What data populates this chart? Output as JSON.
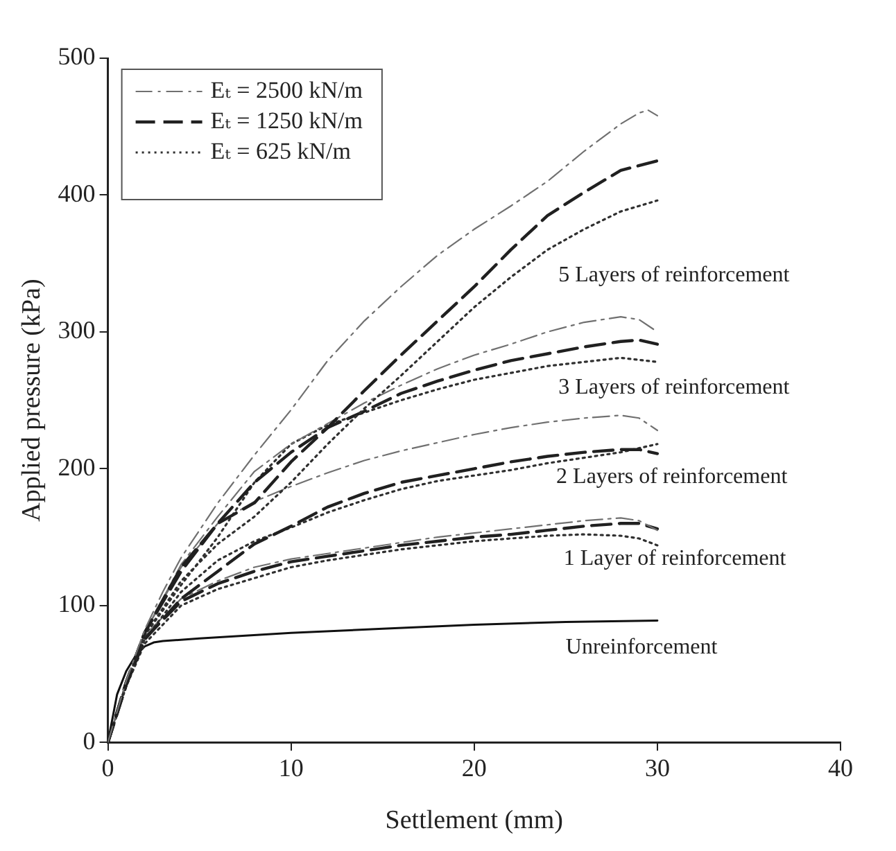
{
  "chart_data": {
    "type": "line",
    "xlabel": "Settlement (mm)",
    "ylabel": "Applied pressure (kPa)",
    "xlim": [
      0,
      40
    ],
    "xticks": [
      0,
      10,
      20,
      30,
      40
    ],
    "ylim": [
      0,
      500
    ],
    "yticks": [
      0,
      100,
      200,
      300,
      400,
      500
    ],
    "grid": false,
    "legend": "top left",
    "marker": "none",
    "series": [
      {
        "name": "Eₜ = 2500 kN/m",
        "color": "#707070",
        "line_style": "dashdot",
        "x": [
          0,
          1,
          2,
          3,
          4,
          5,
          6,
          8,
          10,
          12,
          14,
          16,
          18,
          20,
          22,
          24,
          26,
          28,
          29,
          29.5,
          30
        ],
        "values": [
          0,
          45,
          82,
          110,
          135,
          155,
          175,
          210,
          243,
          279,
          308,
          333,
          356,
          375,
          392,
          410,
          432,
          452,
          460,
          462,
          458
        ]
      },
      {
        "name": "Eₜ = 1250 kN/m",
        "color": "#202020",
        "line_style": "dashed",
        "x": [
          0,
          1,
          2,
          4,
          6,
          8,
          10,
          12,
          14,
          16,
          18,
          20,
          22,
          24,
          26,
          28,
          30
        ],
        "values": [
          0,
          44,
          80,
          128,
          160,
          175,
          205,
          230,
          257,
          283,
          308,
          333,
          360,
          385,
          402,
          418,
          425
        ]
      },
      {
        "name": "Eₜ = 625 kN/m",
        "color": "#303030",
        "line_style": "dotted",
        "x": [
          0,
          1,
          2,
          4,
          6,
          8,
          10,
          12,
          14,
          16,
          18,
          20,
          22,
          24,
          26,
          28,
          30
        ],
        "values": [
          0,
          43,
          78,
          118,
          145,
          165,
          190,
          218,
          244,
          268,
          293,
          318,
          340,
          360,
          375,
          388,
          396
        ]
      },
      {
        "color": "#707070",
        "line_style": "dashdot",
        "x": [
          0,
          1,
          2,
          4,
          6,
          8,
          10,
          12,
          14,
          16,
          18,
          20,
          22,
          24,
          26,
          28,
          29,
          30
        ],
        "values": [
          0,
          44,
          80,
          130,
          165,
          198,
          218,
          233,
          248,
          261,
          273,
          283,
          291,
          300,
          307,
          311,
          309,
          300
        ]
      },
      {
        "color": "#202020",
        "line_style": "dashed",
        "x": [
          0,
          1,
          2,
          4,
          6,
          8,
          10,
          12,
          14,
          16,
          18,
          20,
          22,
          24,
          26,
          28,
          29,
          30
        ],
        "values": [
          0,
          44,
          80,
          125,
          160,
          190,
          212,
          230,
          242,
          255,
          264,
          272,
          279,
          284,
          289,
          293,
          294,
          291
        ]
      },
      {
        "color": "#303030",
        "line_style": "dotted",
        "x": [
          0,
          1,
          2,
          4,
          6,
          8,
          10,
          12,
          14,
          16,
          18,
          20,
          22,
          24,
          26,
          28,
          30
        ],
        "values": [
          0,
          43,
          78,
          115,
          150,
          190,
          218,
          232,
          241,
          250,
          258,
          265,
          270,
          275,
          278,
          281,
          278
        ]
      },
      {
        "color": "#707070",
        "line_style": "dashdot",
        "x": [
          0,
          1,
          2,
          4,
          6,
          8,
          10,
          12,
          14,
          16,
          18,
          20,
          22,
          24,
          26,
          28,
          29,
          30
        ],
        "values": [
          0,
          44,
          80,
          128,
          160,
          176,
          187,
          197,
          206,
          213,
          219,
          225,
          230,
          234,
          237,
          239,
          237,
          228
        ]
      },
      {
        "color": "#202020",
        "line_style": "dashed",
        "x": [
          0,
          1,
          2,
          4,
          6,
          8,
          10,
          12,
          14,
          16,
          18,
          20,
          22,
          24,
          26,
          28,
          29,
          30
        ],
        "values": [
          0,
          42,
          75,
          105,
          125,
          145,
          158,
          172,
          182,
          190,
          195,
          200,
          205,
          209,
          212,
          214,
          214,
          211
        ]
      },
      {
        "color": "#303030",
        "line_style": "dotted",
        "x": [
          0,
          1,
          2,
          4,
          6,
          8,
          10,
          12,
          14,
          16,
          18,
          20,
          22,
          24,
          26,
          28,
          30
        ],
        "values": [
          0,
          42,
          75,
          110,
          133,
          147,
          157,
          168,
          177,
          185,
          191,
          195,
          199,
          204,
          208,
          212,
          218
        ]
      },
      {
        "color": "#707070",
        "line_style": "dashdot",
        "x": [
          0,
          1,
          2,
          4,
          6,
          8,
          10,
          12,
          14,
          16,
          18,
          20,
          22,
          24,
          26,
          28,
          29,
          30
        ],
        "values": [
          0,
          43,
          78,
          105,
          118,
          128,
          134,
          138,
          142,
          146,
          150,
          153,
          156,
          159,
          162,
          164,
          162,
          155
        ]
      },
      {
        "color": "#202020",
        "line_style": "dashed",
        "x": [
          0,
          1,
          2,
          4,
          6,
          8,
          10,
          12,
          14,
          16,
          18,
          20,
          22,
          24,
          26,
          28,
          29,
          30
        ],
        "values": [
          0,
          42,
          76,
          103,
          116,
          125,
          132,
          136,
          140,
          144,
          147,
          150,
          152,
          155,
          158,
          160,
          160,
          156
        ]
      },
      {
        "color": "#303030",
        "line_style": "dotted",
        "x": [
          0,
          1,
          2,
          4,
          6,
          8,
          10,
          12,
          14,
          16,
          18,
          20,
          22,
          24,
          26,
          28,
          29,
          30
        ],
        "values": [
          0,
          41,
          72,
          100,
          112,
          120,
          128,
          133,
          137,
          141,
          144,
          147,
          149,
          151,
          152,
          151,
          149,
          144
        ]
      },
      {
        "color": "#101010",
        "line_style": "solid",
        "x": [
          0,
          0.5,
          1,
          1.5,
          2,
          2.5,
          3,
          5,
          10,
          15,
          20,
          25,
          30
        ],
        "values": [
          0,
          35,
          52,
          63,
          70,
          73,
          74,
          76,
          80,
          83,
          86,
          88,
          89
        ]
      }
    ],
    "annotations": [
      "5 Layers of reinforcement",
      "3 Layers of reinforcement",
      "2 Layers of reinforcement",
      "1 Layer of reinforcement",
      "Unreinforcement"
    ]
  }
}
